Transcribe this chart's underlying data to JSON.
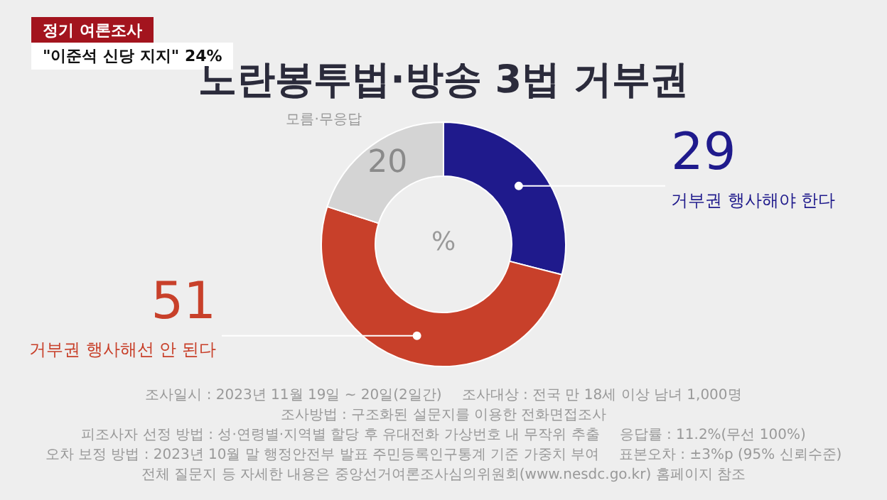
{
  "chart_data": {
    "type": "donut",
    "title": "노란봉투법·방송 3법 거부권",
    "categories": [
      "거부권 행사해야 한다",
      "거부권 행사해선 안 된다",
      "모름·무응답"
    ],
    "values": [
      29,
      51,
      20
    ],
    "colors": [
      "#1f1a8c",
      "#c8402a",
      "#d4d4d4"
    ],
    "data_labels": true,
    "annotations": [
      "정기 여론조사",
      "\"이준석 신당 지지\" 24%",
      "%",
      "조사일시 : 2023년 11월 19일 ~ 20일(2일간)",
      "조사대상 : 전국 만 18세 이상 남녀 1,000명",
      "조사방법 : 구조화된 설문지를 이용한 전화면접조사",
      "피조사자 선정 방법 : 성·연령별·지역별 할당 후 유대전화 가상번호 내 무작위 추출",
      "응답률 : 11.2%(무선 100%)",
      "오차 보정 방법 : 2023년 10월 말 행정안전부 발표 주민등록인구통계 기준 가중치 부여",
      "표본오차 : ±3%p (95% 신뢰수준)",
      "전체 질문지 등 자세한 내용은 중앙선거여론조사심의위원회(www.nesdc.go.kr) 홈페이지 참조"
    ]
  }
}
